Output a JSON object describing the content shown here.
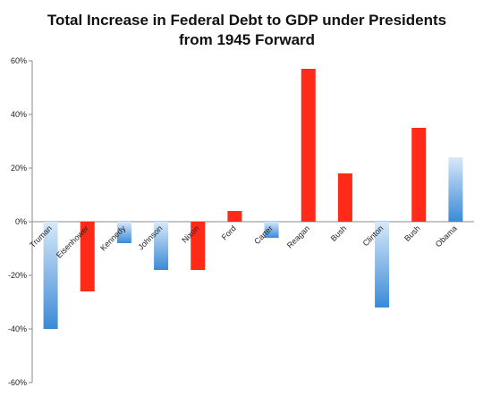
{
  "chart_data": {
    "type": "bar",
    "title_lines": [
      "Total Increase in Federal Debt to GDP under Presidents",
      "from 1945 Forward"
    ],
    "categories": [
      "Truman",
      "Eisenhower",
      "Kennedy",
      "Johnson",
      "Nixon",
      "Ford",
      "Carter",
      "Reagan",
      "Bush",
      "Clinton",
      "Bush",
      "Obama"
    ],
    "values": [
      -40,
      -26,
      -8,
      -18,
      -18,
      4,
      -6,
      57,
      18,
      -32,
      35,
      24
    ],
    "party": [
      "D",
      "R",
      "D",
      "D",
      "R",
      "R",
      "D",
      "R",
      "R",
      "D",
      "R",
      "D"
    ],
    "colors": {
      "D": "#3a8ad6",
      "D_light": "#d7e8f9",
      "R": "#ff2a17"
    },
    "ylim": [
      -60,
      60
    ],
    "yticks": [
      60,
      40,
      20,
      0,
      -20,
      -40,
      -60
    ],
    "ytick_labels": [
      "60%",
      "40%",
      "20%",
      "0%",
      "-20%",
      "-40%",
      "-60%"
    ],
    "xlabel": "",
    "ylabel": "",
    "legend": "none",
    "grid": false
  }
}
